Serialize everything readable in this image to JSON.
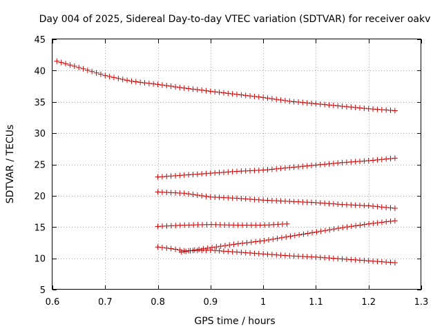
{
  "chart_data": {
    "type": "scatter",
    "title": "Day 004 of 2025, Sidereal Day-to-day VTEC variation (SDTVAR) for receiver oakv",
    "xlabel": "GPS time / hours",
    "ylabel": "SDTVAR / TECUs",
    "xlim": [
      0.6,
      1.3
    ],
    "ylim": [
      5,
      45
    ],
    "grid": true,
    "marker": "plus",
    "color": "#cc0000",
    "xticks": [
      0.6,
      0.7,
      0.8,
      0.9,
      1.0,
      1.1,
      1.2,
      1.3
    ],
    "xtick_labels": [
      "0.6",
      "0.7",
      "0.8",
      "0.9",
      "1",
      "1.1",
      "1.2",
      "1.3"
    ],
    "yticks": [
      5,
      10,
      15,
      20,
      25,
      30,
      35,
      40,
      45
    ],
    "ytick_labels": [
      "5",
      "10",
      "15",
      "20",
      "25",
      "30",
      "35",
      "40",
      "45"
    ],
    "series": [
      {
        "name": "track-1",
        "x_start": 0.6083,
        "x_end": 1.25,
        "n": 78,
        "x_knots": [
          0.6083,
          0.65,
          0.7,
          0.75,
          0.8,
          0.85,
          0.9,
          0.95,
          1.0,
          1.05,
          1.1,
          1.15,
          1.2,
          1.25
        ],
        "y_knots": [
          41.5,
          40.5,
          39.2,
          38.3,
          37.8,
          37.2,
          36.7,
          36.2,
          35.7,
          35.1,
          34.7,
          34.3,
          33.9,
          33.6
        ]
      },
      {
        "name": "track-2",
        "x_start": 0.8,
        "x_end": 1.25,
        "n": 55,
        "x_knots": [
          0.8,
          0.85,
          0.9,
          0.95,
          1.0,
          1.05,
          1.1,
          1.15,
          1.2,
          1.25
        ],
        "y_knots": [
          23.0,
          23.3,
          23.6,
          23.9,
          24.1,
          24.5,
          24.9,
          25.3,
          25.6,
          26.0
        ]
      },
      {
        "name": "track-3",
        "x_start": 0.8,
        "x_end": 1.25,
        "n": 55,
        "x_knots": [
          0.8,
          0.85,
          0.9,
          0.95,
          1.0,
          1.05,
          1.1,
          1.15,
          1.2,
          1.25
        ],
        "y_knots": [
          20.6,
          20.4,
          19.8,
          19.6,
          19.3,
          19.1,
          18.9,
          18.6,
          18.4,
          18.0
        ]
      },
      {
        "name": "track-4",
        "x_start": 0.8,
        "x_end": 1.045,
        "n": 30,
        "x_knots": [
          0.8,
          0.85,
          0.9,
          0.95,
          1.0,
          1.045
        ],
        "y_knots": [
          15.1,
          15.3,
          15.4,
          15.3,
          15.3,
          15.5
        ]
      },
      {
        "name": "track-5",
        "x_start": 0.8,
        "x_end": 1.25,
        "n": 55,
        "x_knots": [
          0.8,
          0.83,
          0.85,
          0.9,
          0.95,
          1.0,
          1.05,
          1.1,
          1.15,
          1.2,
          1.25
        ],
        "y_knots": [
          11.8,
          11.5,
          11.2,
          11.3,
          11.0,
          10.7,
          10.4,
          10.2,
          9.9,
          9.6,
          9.3
        ]
      },
      {
        "name": "track-6",
        "x_start": 0.845,
        "x_end": 1.25,
        "n": 50,
        "x_knots": [
          0.845,
          0.9,
          0.95,
          1.0,
          1.05,
          1.1,
          1.15,
          1.2,
          1.25
        ],
        "y_knots": [
          11.0,
          11.7,
          12.3,
          12.8,
          13.5,
          14.2,
          14.9,
          15.5,
          16.0
        ]
      }
    ]
  }
}
